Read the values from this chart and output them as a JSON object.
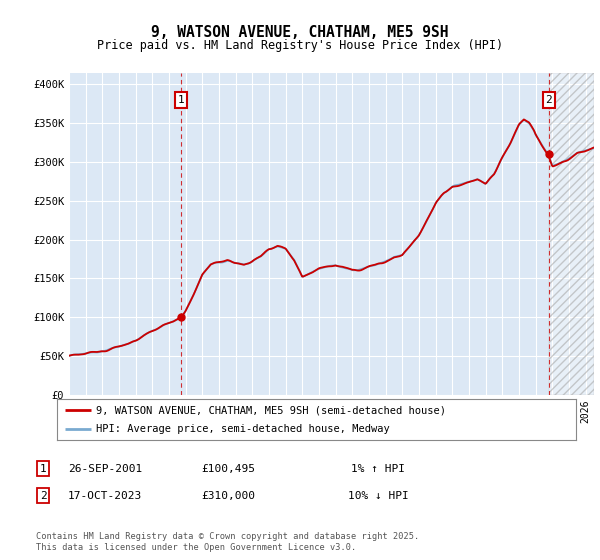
{
  "title": "9, WATSON AVENUE, CHATHAM, ME5 9SH",
  "subtitle": "Price paid vs. HM Land Registry's House Price Index (HPI)",
  "ylabel_ticks": [
    "£0",
    "£50K",
    "£100K",
    "£150K",
    "£200K",
    "£250K",
    "£300K",
    "£350K",
    "£400K"
  ],
  "ytick_values": [
    0,
    50000,
    100000,
    150000,
    200000,
    250000,
    300000,
    350000,
    400000
  ],
  "ylim": [
    0,
    415000
  ],
  "xlim_start": 1995,
  "xlim_end": 2026.5,
  "hpi_color": "#7aaad0",
  "price_color": "#cc0000",
  "background_color": "#ffffff",
  "plot_bg_color": "#dce8f5",
  "grid_color": "#ffffff",
  "marker1_year": 2001.74,
  "marker1_price": 100495,
  "marker2_year": 2023.79,
  "marker2_price": 310000,
  "legend_label_price": "9, WATSON AVENUE, CHATHAM, ME5 9SH (semi-detached house)",
  "legend_label_hpi": "HPI: Average price, semi-detached house, Medway",
  "note1_date": "26-SEP-2001",
  "note1_price": "£100,495",
  "note1_hpi": "1% ↑ HPI",
  "note2_date": "17-OCT-2023",
  "note2_price": "£310,000",
  "note2_hpi": "10% ↓ HPI",
  "footer": "Contains HM Land Registry data © Crown copyright and database right 2025.\nThis data is licensed under the Open Government Licence v3.0."
}
